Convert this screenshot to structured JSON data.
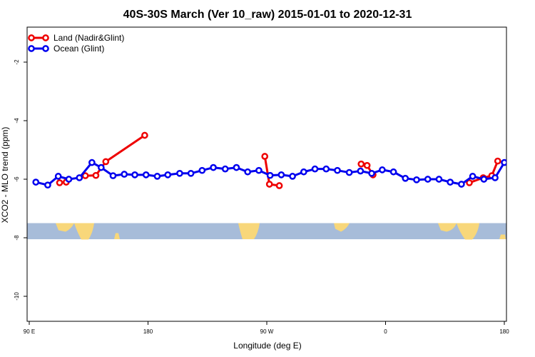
{
  "chart_data": {
    "type": "line",
    "title": "40S-30S March (Ver 10_raw)   2015-01-01 to 2020-12-31",
    "xlabel": "Longitude (deg E)",
    "ylabel": "XCO2 - MLO trend (ppm)",
    "xlim": [
      90,
      450
    ],
    "ylim": [
      -10.9,
      -0.9
    ],
    "x_ticks": [
      {
        "value": 90,
        "label": "90 E"
      },
      {
        "value": 180,
        "label": "180"
      },
      {
        "value": 270,
        "label": "90 W"
      },
      {
        "value": 360,
        "label": "0"
      },
      {
        "value": 450,
        "label": "180"
      }
    ],
    "y_ticks": [
      {
        "value": -2,
        "label": "-2"
      },
      {
        "value": -4,
        "label": "-4"
      },
      {
        "value": -6,
        "label": "-6"
      },
      {
        "value": -8,
        "label": "-8"
      },
      {
        "value": -10,
        "label": "-10"
      }
    ],
    "legend_position": "top-left",
    "grid": false,
    "map_band": {
      "y_range": [
        -8.05,
        -7.5
      ],
      "ocean_color": "#a7bcd9",
      "land_color": "#f8d77a"
    },
    "series": [
      {
        "name": "Land (Nadir&Glint)",
        "color": "#ee0000",
        "segments": [
          [
            [
              113,
              -6.12
            ],
            [
              118,
              -6.1
            ]
          ],
          [
            [
              132.5,
              -5.88
            ],
            [
              140.5,
              -5.87
            ],
            [
              148,
              -5.4
            ],
            [
              177.5,
              -4.5
            ]
          ],
          [
            [
              268.5,
              -5.22
            ],
            [
              272,
              -6.17
            ],
            [
              279.5,
              -6.22
            ]
          ],
          [
            [
              341.5,
              -5.48
            ],
            [
              346,
              -5.53
            ],
            [
              350.5,
              -5.85
            ]
          ],
          [
            [
              423.5,
              -6.12
            ],
            [
              434,
              -5.95
            ],
            [
              440.5,
              -5.88
            ],
            [
              445,
              -5.38
            ]
          ],
          [
            [
              478.5,
              -4.5
            ]
          ]
        ]
      },
      {
        "name": "Ocean (Glint)",
        "color": "#0000ee",
        "segments": [
          [
            [
              95,
              -6.1
            ],
            [
              104,
              -6.2
            ],
            [
              112,
              -5.9
            ],
            [
              120,
              -6.0
            ],
            [
              128,
              -5.95
            ],
            [
              137.5,
              -5.43
            ],
            [
              144.5,
              -5.6
            ],
            [
              153.5,
              -5.88
            ],
            [
              162,
              -5.83
            ],
            [
              170,
              -5.85
            ],
            [
              178.5,
              -5.85
            ],
            [
              187,
              -5.9
            ],
            [
              195,
              -5.85
            ],
            [
              204,
              -5.8
            ],
            [
              212.5,
              -5.8
            ],
            [
              221,
              -5.7
            ],
            [
              229.5,
              -5.6
            ],
            [
              238.5,
              -5.65
            ],
            [
              247,
              -5.6
            ],
            [
              255.5,
              -5.75
            ],
            [
              264,
              -5.7
            ],
            [
              272.5,
              -5.87
            ],
            [
              281,
              -5.85
            ],
            [
              289.5,
              -5.9
            ],
            [
              298,
              -5.75
            ],
            [
              306.5,
              -5.65
            ],
            [
              315,
              -5.65
            ],
            [
              323.5,
              -5.7
            ],
            [
              332.5,
              -5.77
            ],
            [
              341,
              -5.72
            ],
            [
              349.5,
              -5.8
            ],
            [
              357.5,
              -5.68
            ],
            [
              366,
              -5.75
            ],
            [
              375,
              -5.97
            ],
            [
              383.5,
              -6.02
            ],
            [
              392,
              -6.0
            ],
            [
              400.5,
              -6.0
            ],
            [
              409,
              -6.1
            ],
            [
              417.5,
              -6.17
            ],
            [
              426,
              -5.9
            ],
            [
              434.5,
              -6.0
            ],
            [
              443,
              -5.95
            ],
            [
              450,
              -5.43
            ],
            [
              459,
              -5.6
            ],
            [
              468,
              -5.9
            ],
            [
              476.5,
              -5.85
            ]
          ]
        ]
      }
    ]
  }
}
